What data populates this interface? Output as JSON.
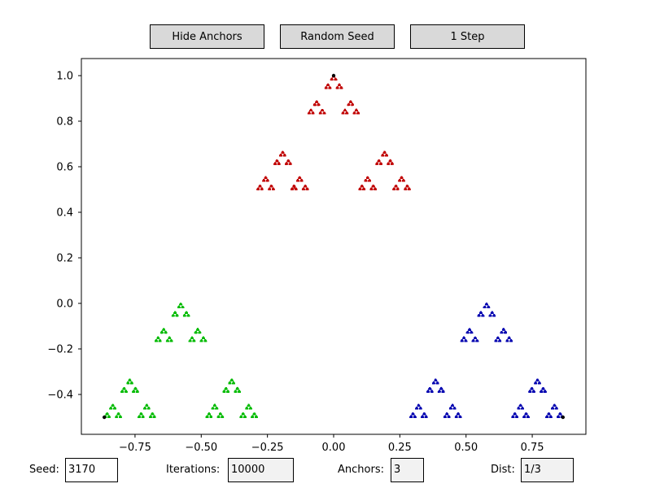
{
  "buttons": {
    "hide_anchors": "Hide Anchors",
    "random_seed": "Random Seed",
    "one_step": "1 Step"
  },
  "controls": {
    "seed_label": "Seed:",
    "seed_value": "3170",
    "iterations_label": "Iterations:",
    "iterations_value": "10000",
    "anchors_label": "Anchors:",
    "anchors_value": "3",
    "dist_label": "Dist:",
    "dist_value": "1/3"
  },
  "chart_data": {
    "type": "scatter",
    "title": "",
    "xlabel": "",
    "ylabel": "",
    "xlim": [
      -0.9526,
      0.9526
    ],
    "ylim": [
      -0.575,
      1.075
    ],
    "xticks": [
      -0.75,
      -0.5,
      -0.25,
      0.0,
      0.25,
      0.5,
      0.75
    ],
    "xtick_labels": [
      "−0.75",
      "−0.50",
      "−0.25",
      "0.00",
      "0.25",
      "0.50",
      "0.75"
    ],
    "yticks": [
      -0.4,
      -0.2,
      0.0,
      0.2,
      0.4,
      0.6,
      0.8,
      1.0
    ],
    "ytick_labels": [
      "−0.4",
      "−0.2",
      "0.0",
      "0.2",
      "0.4",
      "0.6",
      "0.8",
      "1.0"
    ],
    "grid": false,
    "anchors": [
      {
        "x": 0.0,
        "y": 1.0
      },
      {
        "x": -0.866,
        "y": -0.5
      },
      {
        "x": 0.866,
        "y": -0.5
      }
    ],
    "anchor_color": "#000000",
    "series": [
      {
        "color": "#c00000"
      },
      {
        "color": "#00bb00"
      },
      {
        "color": "#0000b0"
      }
    ],
    "seed": 3170,
    "iterations": 10000,
    "distance": 0.3333
  }
}
